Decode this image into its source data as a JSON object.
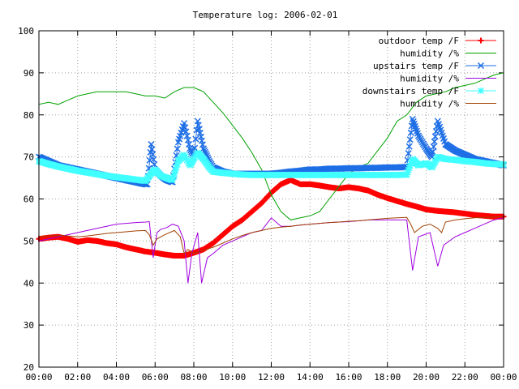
{
  "chart_data": {
    "type": "line",
    "title": "Temperature log: 2006-02-01",
    "xlabel": "",
    "ylabel": "",
    "x_ticks": [
      "00:00",
      "02:00",
      "04:00",
      "06:00",
      "08:00",
      "10:00",
      "12:00",
      "14:00",
      "16:00",
      "18:00",
      "20:00",
      "22:00",
      "00:00"
    ],
    "y_ticks": [
      20,
      30,
      40,
      50,
      60,
      70,
      80,
      90,
      100
    ],
    "xlim": [
      0,
      24
    ],
    "ylim": [
      20,
      100
    ],
    "grid": true,
    "legend_position": "top-right",
    "series": [
      {
        "name": "outdoor temp /F",
        "color": "#ff0000",
        "marker": "plus",
        "x": [
          0,
          0.5,
          1,
          1.5,
          2,
          2.5,
          3,
          3.5,
          4,
          4.5,
          5,
          5.5,
          6,
          6.5,
          7,
          7.5,
          8,
          8.5,
          9,
          9.5,
          10,
          10.5,
          11,
          11.5,
          12,
          12.5,
          13,
          13.5,
          14,
          14.5,
          15,
          15.5,
          16,
          16.5,
          17,
          17.5,
          18,
          18.5,
          19,
          19.5,
          20,
          20.5,
          21,
          21.5,
          22,
          22.5,
          23,
          23.5,
          24
        ],
        "y": [
          50.5,
          50.8,
          51,
          50.5,
          49.8,
          50.2,
          50,
          49.5,
          49.2,
          48.5,
          48,
          47.5,
          47.2,
          46.8,
          46.5,
          46.5,
          47.2,
          48,
          49.5,
          51.5,
          53.5,
          55,
          57,
          59,
          61.5,
          63.5,
          64.5,
          63.5,
          63.5,
          63.2,
          62.8,
          62.5,
          62.8,
          62.5,
          62,
          61,
          60.2,
          59.5,
          58.8,
          58.2,
          57.5,
          57.2,
          57,
          56.8,
          56.5,
          56.2,
          56,
          55.8,
          55.8
        ]
      },
      {
        "name": "humidity /%",
        "color": "#00a000",
        "marker": "none",
        "x": [
          0,
          0.5,
          1,
          1.5,
          2,
          2.5,
          3,
          3.5,
          4,
          4.5,
          5,
          5.5,
          6,
          6.5,
          7,
          7.5,
          8,
          8.5,
          9,
          9.5,
          10,
          10.5,
          11,
          11.5,
          12,
          12.5,
          13,
          13.5,
          14,
          14.5,
          15,
          15.5,
          16,
          16.5,
          17,
          17.5,
          18,
          18.5,
          19,
          19.5,
          20,
          20.5,
          21,
          21.5,
          22,
          22.5,
          23,
          23.5,
          24
        ],
        "y": [
          82.5,
          83,
          82.5,
          83.5,
          84.5,
          85,
          85.5,
          85.5,
          85.5,
          85.5,
          85,
          84.5,
          84.5,
          84,
          85.5,
          86.5,
          86.5,
          85.5,
          83,
          80.5,
          77.5,
          74.5,
          71,
          67,
          61,
          57,
          55,
          55.5,
          56,
          57,
          60,
          63,
          66,
          67.5,
          68.5,
          71.5,
          74.5,
          78.5,
          80,
          83,
          84.5,
          85,
          85.5,
          86.5,
          87,
          87.5,
          88.5,
          89.5,
          90
        ]
      },
      {
        "name": "upstairs temp /F",
        "color": "#1e6ee6",
        "marker": "x",
        "x": [
          0,
          0.5,
          1,
          1.5,
          2,
          2.5,
          3,
          3.5,
          4,
          4.5,
          5,
          5.5,
          5.6,
          5.8,
          6,
          6.3,
          6.6,
          6.9,
          7.2,
          7.5,
          7.8,
          8,
          8.2,
          8.5,
          8.8,
          9,
          9.5,
          10,
          10.5,
          11,
          11.5,
          12,
          12.5,
          13,
          13.5,
          14,
          14.5,
          15,
          15.5,
          16,
          16.5,
          17,
          17.5,
          18,
          18.5,
          19,
          19.3,
          19.6,
          20,
          20.3,
          20.6,
          21,
          21.5,
          22,
          22.5,
          23,
          23.5,
          24
        ],
        "y": [
          70,
          69,
          68,
          67.5,
          67,
          66.5,
          66,
          65.5,
          65,
          64.5,
          64,
          63.5,
          63.5,
          73,
          67,
          65.5,
          64.5,
          64,
          73.5,
          78,
          72,
          70,
          78.5,
          72,
          69,
          67.5,
          66.5,
          66,
          66,
          66,
          66,
          66,
          66.2,
          66.5,
          66.7,
          67,
          67,
          67.2,
          67.2,
          67.3,
          67.3,
          67.4,
          67.4,
          67.5,
          67.5,
          67.6,
          79,
          75,
          72,
          70,
          78.5,
          73,
          71.5,
          70.5,
          69.5,
          69,
          68.5,
          68
        ]
      },
      {
        "name": "humidity /%",
        "color": "#a000e0",
        "marker": "none",
        "x": [
          0,
          0.5,
          1,
          1.5,
          2,
          2.5,
          3,
          3.5,
          4,
          4.5,
          5,
          5.5,
          5.7,
          5.9,
          6.1,
          6.3,
          6.6,
          6.9,
          7.2,
          7.5,
          7.7,
          7.9,
          8.2,
          8.4,
          8.7,
          9,
          9.5,
          10,
          10.5,
          11,
          11.5,
          12,
          12.5,
          13,
          13.5,
          14,
          14.5,
          15,
          15.5,
          16,
          16.5,
          17,
          17.5,
          18,
          18.5,
          19,
          19.3,
          19.6,
          19.9,
          20.2,
          20.6,
          20.9,
          21.2,
          21.5,
          22,
          22.5,
          23,
          23.5,
          24
        ],
        "y": [
          50,
          50.5,
          51,
          51.5,
          52,
          52.5,
          53,
          53.5,
          54,
          54.2,
          54.4,
          54.5,
          54.6,
          46,
          52,
          52.8,
          53.2,
          54,
          53.5,
          50,
          40,
          47,
          52,
          40,
          46,
          47,
          49,
          50,
          51,
          52,
          52.5,
          55.5,
          53.5,
          53.5,
          53.8,
          54,
          54.2,
          54.4,
          54.5,
          54.6,
          54.8,
          55,
          55,
          55,
          55,
          55,
          43,
          51,
          51.5,
          52,
          44,
          49,
          50,
          51,
          52,
          53,
          54,
          55,
          55.5
        ]
      },
      {
        "name": "downstairs temp /F",
        "color": "#40ffff",
        "marker": "star",
        "x": [
          0,
          0.5,
          1,
          1.5,
          2,
          2.5,
          3,
          3.5,
          4,
          4.5,
          5,
          5.5,
          5.8,
          6,
          6.3,
          6.6,
          6.9,
          7.2,
          7.5,
          7.8,
          8,
          8.2,
          8.5,
          8.8,
          9,
          9.5,
          10,
          10.5,
          11,
          11.5,
          12,
          12.5,
          13,
          13.5,
          14,
          14.5,
          15,
          15.5,
          16,
          16.5,
          17,
          17.5,
          18,
          18.5,
          19,
          19.3,
          19.6,
          20,
          20.3,
          20.6,
          21,
          21.5,
          22,
          22.5,
          23,
          23.5,
          24
        ],
        "y": [
          69,
          68.3,
          67.7,
          67.2,
          66.7,
          66.3,
          65.9,
          65.5,
          65.2,
          64.9,
          64.6,
          64.3,
          66,
          67,
          65.5,
          65,
          64.5,
          69,
          70.5,
          68,
          69.5,
          71,
          69.5,
          67.5,
          66.5,
          66.2,
          66,
          65.8,
          65.7,
          65.7,
          65.7,
          65.7,
          65.7,
          65.7,
          65.7,
          65.7,
          65.7,
          65.7,
          65.7,
          65.7,
          65.7,
          65.7,
          65.7,
          65.7,
          65.8,
          69.5,
          68,
          68.5,
          67.5,
          70,
          69.5,
          69.3,
          69,
          68.8,
          68.5,
          68.3,
          68.2
        ]
      },
      {
        "name": "humidity /%",
        "color": "#a04000",
        "marker": "none",
        "x": [
          0,
          0.5,
          1,
          1.5,
          2,
          2.5,
          3,
          3.5,
          4,
          4.5,
          5,
          5.5,
          5.7,
          5.9,
          6.1,
          6.5,
          7,
          7.3,
          7.5,
          7.7,
          8,
          8.3,
          8.6,
          9,
          9.5,
          10,
          10.5,
          11,
          11.5,
          12,
          12.5,
          13,
          13.5,
          14,
          14.5,
          15,
          15.5,
          16,
          16.5,
          17,
          17.5,
          18,
          18.5,
          19,
          19.2,
          19.4,
          19.8,
          20.2,
          20.6,
          20.8,
          21,
          21.5,
          22,
          22.5,
          23,
          23.5,
          24
        ],
        "y": [
          51,
          51.2,
          51.3,
          51.2,
          51,
          51.2,
          51.5,
          51.8,
          52,
          52.2,
          52.4,
          52.5,
          51.5,
          49,
          50.5,
          51.5,
          52.5,
          51,
          47,
          48,
          47,
          47.5,
          48,
          48.5,
          49.5,
          50.5,
          51.3,
          52,
          52.5,
          53,
          53.3,
          53.5,
          53.8,
          54,
          54.2,
          54.4,
          54.5,
          54.7,
          54.8,
          55,
          55.2,
          55.4,
          55.5,
          55.6,
          54,
          52,
          53.5,
          54,
          53,
          52,
          54.5,
          55,
          55.3,
          55.5,
          55.6,
          55.7,
          55.8
        ]
      }
    ]
  }
}
